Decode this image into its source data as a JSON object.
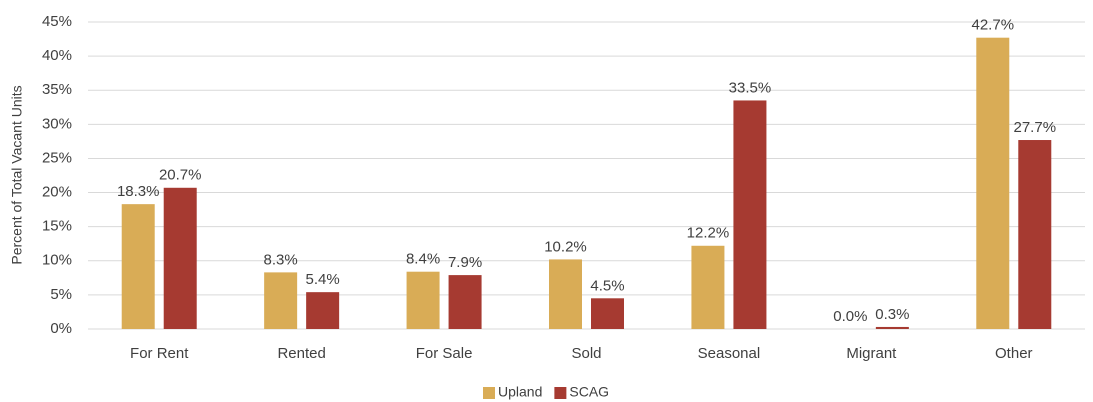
{
  "chart_data": {
    "type": "bar",
    "y_label": "Percent of Total Vacant Units",
    "categories": [
      "For Rent",
      "Rented",
      "For Sale",
      "Sold",
      "Seasonal",
      "Migrant",
      "Other"
    ],
    "series": [
      {
        "name": "Upland",
        "color": "#d9ac56",
        "values": [
          18.3,
          8.3,
          8.4,
          10.2,
          12.2,
          0.0,
          42.7
        ],
        "value_labels": [
          "18.3%",
          "8.3%",
          "8.4%",
          "10.2%",
          "12.2%",
          "0.0%",
          "42.7%"
        ]
      },
      {
        "name": "SCAG",
        "color": "#a63a31",
        "values": [
          20.7,
          5.4,
          7.9,
          4.5,
          33.5,
          0.3,
          27.7
        ],
        "value_labels": [
          "20.7%",
          "5.4%",
          "7.9%",
          "4.5%",
          "33.5%",
          "0.3%",
          "27.7%"
        ]
      }
    ],
    "ylim": [
      0,
      45
    ],
    "yticks": [
      {
        "value": 0,
        "label": "0%"
      },
      {
        "value": 5,
        "label": "5%"
      },
      {
        "value": 10,
        "label": "10%"
      },
      {
        "value": 15,
        "label": "15%"
      },
      {
        "value": 20,
        "label": "20%"
      },
      {
        "value": 25,
        "label": "25%"
      },
      {
        "value": 30,
        "label": "30%"
      },
      {
        "value": 35,
        "label": "35%"
      },
      {
        "value": 40,
        "label": "40%"
      },
      {
        "value": 45,
        "label": "45%"
      }
    ],
    "grid": true,
    "legend": "bottom"
  }
}
